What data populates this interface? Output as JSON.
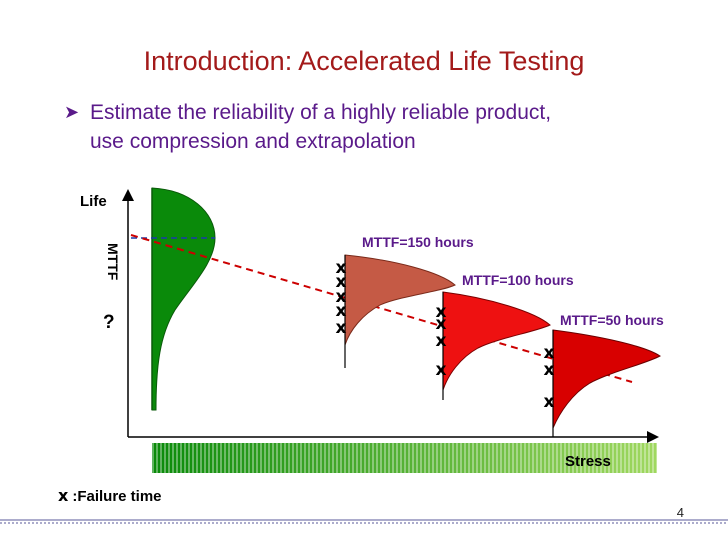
{
  "slide": {
    "title": "Introduction: Accelerated Life Testing",
    "bullet_line1": "Estimate the reliability of a highly reliable product,",
    "bullet_line2": "use compression and extrapolation",
    "page_number": "4"
  },
  "diagram": {
    "y_axis_label": "Life",
    "mttf_axis_label": "MTTF",
    "unknown_mark": "?",
    "x_axis_label": "Stress",
    "failure_symbol": "x",
    "legend_text": ":Failure time",
    "stress_levels": [
      {
        "mttf_label": "MTTF=150 hours",
        "color": "#c55a45"
      },
      {
        "mttf_label": "MTTF=100 hours",
        "color": "#ee1111"
      },
      {
        "mttf_label": "MTTF=50 hours",
        "color": "#d80000"
      }
    ],
    "use_level_color": "#0a8a0a",
    "extrapolation_line_color": "#cc0000",
    "stress_bar_colors": [
      "#0a8a0a",
      "#a0d860"
    ]
  }
}
